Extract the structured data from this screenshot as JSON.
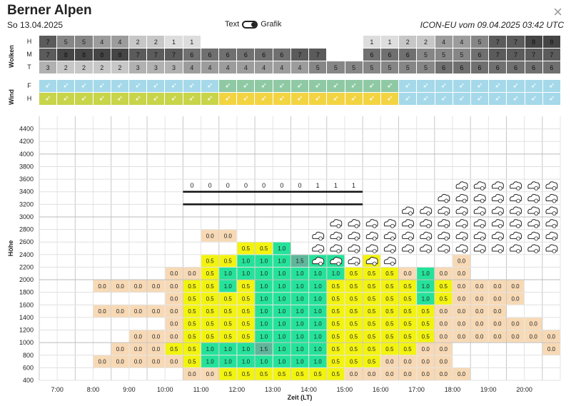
{
  "header": {
    "title": "Berner Alpen",
    "date": "So 13.04.2025",
    "toggle_left": "Text",
    "toggle_right": "Grafik",
    "model": "ICON-EU vom 09.04.2025 03:42 UTC",
    "close": "×"
  },
  "clouds": {
    "label": "Wolken",
    "rows": [
      {
        "label": "H",
        "values": [
          "7",
          "5",
          "5",
          "4",
          "4",
          "2",
          "2",
          "1",
          "1",
          "",
          "",
          "",
          "",
          "",
          "",
          "",
          "",
          "",
          "1",
          "1",
          "2",
          "2",
          "4",
          "4",
          "5",
          "7",
          "7",
          "8",
          "8"
        ]
      },
      {
        "label": "M",
        "values": [
          "7",
          "8",
          "8",
          "8",
          "8",
          "7",
          "7",
          "7",
          "6",
          "6",
          "6",
          "6",
          "6",
          "6",
          "7",
          "7",
          "",
          "",
          "6",
          "6",
          "6",
          "5",
          "5",
          "5",
          "6",
          "7",
          "7",
          "7",
          "7"
        ]
      },
      {
        "label": "T",
        "values": [
          "3",
          "2",
          "2",
          "2",
          "2",
          "3",
          "3",
          "3",
          "4",
          "4",
          "4",
          "4",
          "4",
          "4",
          "4",
          "5",
          "5",
          "5",
          "5",
          "5",
          "5",
          "5",
          "6",
          "6",
          "6",
          "6",
          "6",
          "6",
          "6"
        ]
      }
    ]
  },
  "wind": {
    "label": "Wind",
    "rows": [
      {
        "label": "F",
        "values": [
          "➶",
          "➶",
          "➶",
          "➶",
          "➶",
          "➶",
          "➶",
          "➶",
          "➶",
          "➶",
          "➶",
          "➶",
          "➶",
          "➶",
          "➶",
          "➶",
          "➶",
          "➶",
          "➶",
          "➶",
          "➶",
          "➶",
          "➶",
          "➶",
          "➶",
          "➶",
          "➶",
          "➶",
          "➶"
        ]
      },
      {
        "label": "H",
        "values": [
          "➶",
          "➶",
          "➶",
          "➶",
          "➶",
          "➶",
          "➶",
          "➶",
          "➶",
          "➶",
          "➶",
          "➶",
          "➶",
          "➶",
          "➶",
          "➶",
          "➶",
          "➶",
          "➶",
          "➶",
          "➶",
          "➶",
          "➶",
          "➶",
          "➶",
          "➶",
          "➶",
          "➶",
          "➶"
        ]
      }
    ]
  },
  "chart_data": {
    "type": "heatmap",
    "ylabel": "Höhe",
    "xlabel": "Zeit (LT)",
    "ylim": [
      400,
      4600
    ],
    "y_ticks": [
      "400",
      "600",
      "800",
      "1000",
      "1200",
      "1400",
      "1600",
      "1800",
      "2000",
      "2200",
      "2400",
      "2600",
      "2800",
      "3000",
      "3200",
      "3400",
      "3600",
      "3800",
      "4000",
      "4200",
      "4400"
    ],
    "x_tick_labels": [
      "7:00",
      "8:00",
      "9:00",
      "10:00",
      "11:00",
      "12:00",
      "13:00",
      "14:00",
      "15:00",
      "16:00",
      "17:00",
      "18:00",
      "19:00",
      "20:00"
    ],
    "slots": 29,
    "level_start": 400,
    "level_step": 200,
    "cells": [
      [
        "",
        "",
        "",
        "",
        "",
        "",
        "",
        "",
        "0.0",
        "0.0",
        "0.5",
        "0.5",
        "0.5",
        "0.5",
        "0.5",
        "0.5",
        "0.5",
        "0.0",
        "0.0",
        "0.0",
        "0.0",
        "0.0",
        "0.0",
        "0.0",
        "",
        "",
        "",
        "",
        ""
      ],
      [
        "",
        "",
        "",
        "0.0",
        "0.0",
        "0.0",
        "0.0",
        "0.0",
        "0.5",
        "1.0",
        "1.0",
        "1.0",
        "1.0",
        "1.0",
        "1.0",
        "1.0",
        "0.5",
        "0.5",
        "0.5",
        "0.0",
        "0.0",
        "0.0",
        "0.0",
        "",
        "",
        "",
        "",
        "",
        ""
      ],
      [
        "",
        "",
        "",
        "",
        "0.0",
        "0.0",
        "0.0",
        "0.5",
        "0.5",
        "1.0",
        "1.0",
        "1.0",
        "1.5",
        "1.0",
        "1.0",
        "1.0",
        "0.5",
        "0.5",
        "0.5",
        "0.5",
        "0.5",
        "0.0",
        "0.0",
        "",
        "",
        "",
        "",
        "",
        "0.0"
      ],
      [
        "",
        "",
        "",
        "",
        "",
        "0.0",
        "0.0",
        "0.0",
        "0.5",
        "0.5",
        "0.5",
        "0.5",
        "1.0",
        "1.0",
        "1.0",
        "1.0",
        "0.5",
        "0.5",
        "0.5",
        "0.5",
        "0.5",
        "0.5",
        "0.0",
        "0.0",
        "0.0",
        "0.0",
        "0.0",
        "0.0",
        "0.0"
      ],
      [
        "",
        "",
        "",
        "",
        "",
        "",
        "",
        "0.0",
        "0.5",
        "0.5",
        "0.5",
        "0.5",
        "1.0",
        "1.0",
        "1.0",
        "1.0",
        "0.5",
        "0.5",
        "0.5",
        "0.5",
        "0.5",
        "0.5",
        "0.0",
        "0.0",
        "0.0",
        "0.0",
        "0.0",
        "0.0",
        ""
      ],
      [
        "",
        "",
        "",
        "0.0",
        "0.0",
        "0.0",
        "0.0",
        "0.0",
        "0.5",
        "0.5",
        "0.5",
        "0.5",
        "1.0",
        "1.0",
        "1.0",
        "1.0",
        "0.5",
        "0.5",
        "0.5",
        "0.5",
        "0.5",
        "0.5",
        "0.0",
        "0.0",
        "0.0",
        "0.0",
        "",
        "",
        ""
      ],
      [
        "",
        "",
        "",
        "",
        "",
        "",
        "",
        "0.0",
        "0.5",
        "0.5",
        "0.5",
        "0.5",
        "1.0",
        "1.0",
        "1.0",
        "1.0",
        "0.5",
        "0.5",
        "0.5",
        "0.5",
        "0.5",
        "1.0",
        "0.5",
        "0.0",
        "0.0",
        "0.0",
        "0.0",
        "",
        ""
      ],
      [
        "",
        "",
        "",
        "0.0",
        "0.0",
        "0.0",
        "0.0",
        "0.0",
        "0.5",
        "0.5",
        "1.0",
        "0.5",
        "1.0",
        "1.0",
        "1.0",
        "1.0",
        "0.5",
        "0.5",
        "0.5",
        "0.5",
        "0.5",
        "1.0",
        "0.5",
        "0.0",
        "0.0",
        "0.0",
        "0.0",
        "",
        ""
      ],
      [
        "",
        "",
        "",
        "",
        "",
        "",
        "",
        "0.0",
        "0.0",
        "0.5",
        "1.0",
        "1.0",
        "1.0",
        "1.0",
        "1.0",
        "1.0",
        "1.0",
        "0.5",
        "0.5",
        "0.5",
        "0.0",
        "1.0",
        "0.0",
        "0.0",
        "",
        "",
        "",
        "",
        ""
      ],
      [
        "",
        "",
        "",
        "",
        "",
        "",
        "",
        "",
        "",
        "0.5",
        "0.5",
        "1.0",
        "1.0",
        "1.0",
        "1.5",
        "1.0",
        "1.0",
        "",
        "0.5",
        "",
        "",
        "",
        "",
        "0.0",
        "",
        "",
        "",
        "",
        ""
      ],
      [
        "",
        "",
        "",
        "",
        "",
        "",
        "",
        "",
        "",
        "",
        "",
        "0.5",
        "0.5",
        "1.0",
        "",
        "",
        "",
        "",
        "",
        "",
        "",
        "",
        "",
        "",
        "",
        "",
        "",
        "",
        ""
      ],
      [
        "",
        "",
        "",
        "",
        "",
        "",
        "",
        "",
        "",
        "0.0",
        "0.0",
        "",
        "",
        "",
        "",
        "",
        "",
        "",
        "",
        "",
        "",
        "",
        "",
        "",
        "",
        "",
        "",
        "",
        ""
      ],
      [],
      [],
      [],
      [
        "",
        "",
        "",
        "",
        "",
        "",
        "",
        "",
        "0",
        "0",
        "0",
        "0",
        "0",
        "0",
        "0",
        "1",
        "1",
        "1",
        "",
        "",
        "",
        "",
        "",
        "",
        "",
        "",
        "",
        "",
        ""
      ]
    ],
    "thermal_markers": {
      "columns_start": [
        15,
        16,
        17,
        18,
        19,
        20,
        21,
        22,
        23,
        24,
        25,
        26,
        27,
        28
      ],
      "level_ranges": [
        [
          2200,
          2600
        ],
        [
          2200,
          2800
        ],
        [
          2200,
          2800
        ],
        [
          2200,
          2800
        ],
        [
          2200,
          2800
        ],
        [
          2400,
          3000
        ],
        [
          2400,
          3000
        ],
        [
          2400,
          3200
        ],
        [
          2400,
          3400
        ],
        [
          2400,
          3400
        ],
        [
          2400,
          3400
        ],
        [
          2400,
          3400
        ],
        [
          2400,
          3400
        ],
        [
          2400,
          3400
        ]
      ]
    },
    "inversion_band": {
      "levels": [
        3200,
        3400
      ],
      "columns": [
        8,
        17
      ]
    }
  },
  "colors": {
    "c0": "#f7d9b5",
    "c05": "#f3f311",
    "c10": "#25e29a",
    "c15": "#5fb69b",
    "wind_f": "#a5d9ea",
    "wind_h": "#c8d44a"
  }
}
